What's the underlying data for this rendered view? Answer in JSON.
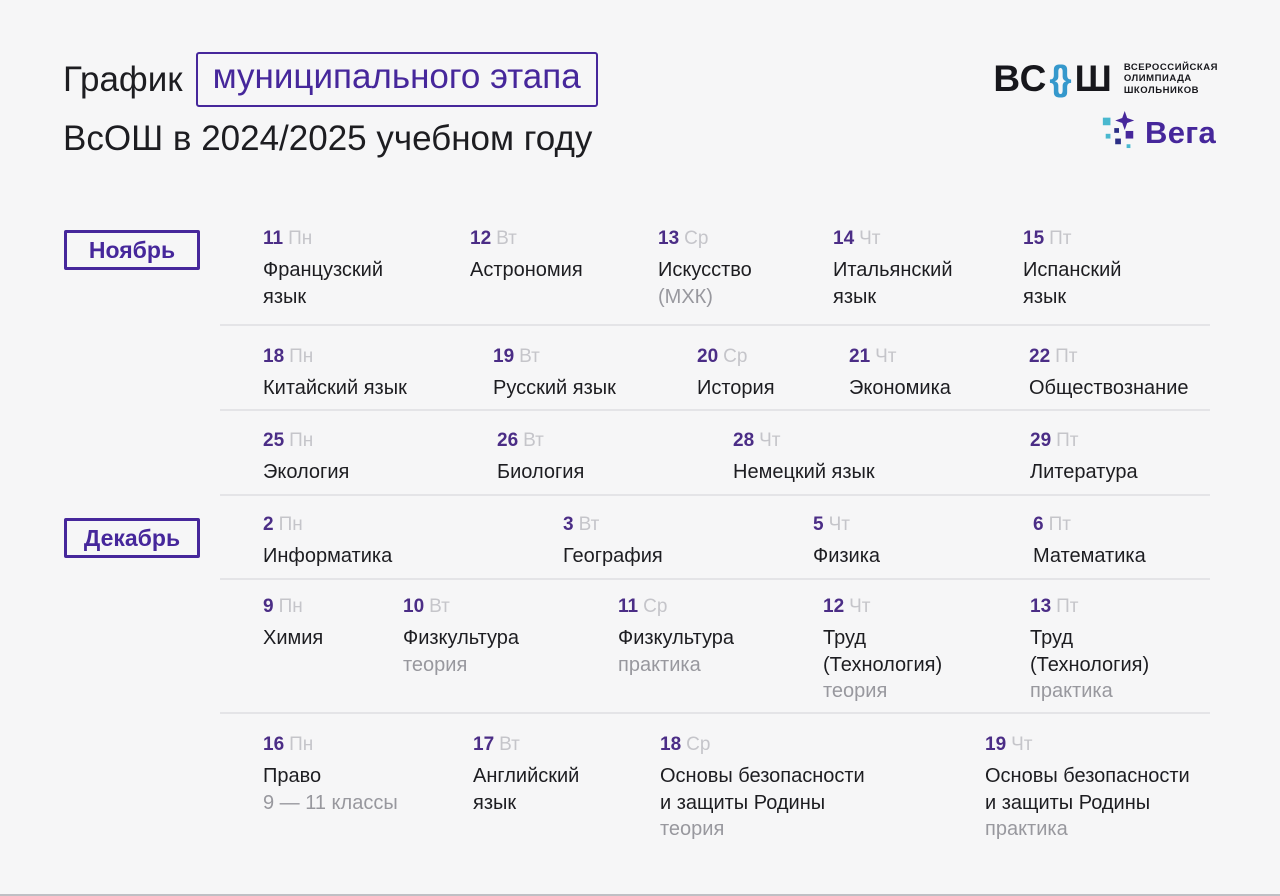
{
  "header": {
    "title_prefix": "График",
    "title_highlight": "муниципального этапа",
    "title_line2": "ВсОШ в 2024/2025 учебном году"
  },
  "logos": {
    "vsosh": {
      "wordmark_left": "ВС",
      "wordmark_o_left": "{",
      "wordmark_o_right": "}",
      "wordmark_right": "Ш",
      "caption_line1": "ВСЕРОССИЙСКАЯ",
      "caption_line2": "ОЛИМПИАДА",
      "caption_line3": "ШКОЛЬНИКОВ"
    },
    "vega": {
      "wordmark": "Вега"
    }
  },
  "colors": {
    "accent_purple": "#46279b",
    "date_purple": "#4b2d86",
    "vsosh_blue": "#3598cc",
    "vega_teal": "#49b8cf",
    "vega_navy": "#2b2f86",
    "text_dark": "#1d1d21",
    "sub_gray": "#98989e",
    "day_gray": "#c5c5ca",
    "background": "#f6f6f7"
  },
  "calendar": {
    "rows": [
      {
        "month": "Ноябрь",
        "cells": [
          {
            "date": "11",
            "day": "Пн",
            "lines": [
              "Французский",
              "язык"
            ]
          },
          {
            "date": "12",
            "day": "Вт",
            "lines": [
              "Астрономия"
            ]
          },
          {
            "date": "13",
            "day": "Ср",
            "lines": [
              "Искусство"
            ],
            "sub": "(МХК)"
          },
          {
            "date": "14",
            "day": "Чт",
            "lines": [
              "Итальянский",
              "язык"
            ]
          },
          {
            "date": "15",
            "day": "Пт",
            "lines": [
              "Испанский",
              "язык"
            ]
          }
        ]
      },
      {
        "cells": [
          {
            "date": "18",
            "day": "Пн",
            "lines": [
              "Китайский язык"
            ]
          },
          {
            "date": "19",
            "day": "Вт",
            "lines": [
              "Русский язык"
            ]
          },
          {
            "date": "20",
            "day": "Ср",
            "lines": [
              "История"
            ]
          },
          {
            "date": "21",
            "day": "Чт",
            "lines": [
              "Экономика"
            ]
          },
          {
            "date": "22",
            "day": "Пт",
            "lines": [
              "Обществознание"
            ]
          }
        ]
      },
      {
        "cells": [
          {
            "date": "25",
            "day": "Пн",
            "lines": [
              "Экология"
            ]
          },
          {
            "date": "26",
            "day": "Вт",
            "lines": [
              "Биология"
            ]
          },
          {
            "date": "28",
            "day": "Чт",
            "lines": [
              "Немецкий язык"
            ]
          },
          {
            "date": "29",
            "day": "Пт",
            "lines": [
              "Литература"
            ]
          }
        ]
      },
      {
        "month": "Декабрь",
        "cells": [
          {
            "date": "2",
            "day": "Пн",
            "lines": [
              "Информатика"
            ]
          },
          {
            "date": "3",
            "day": "Вт",
            "lines": [
              "География"
            ]
          },
          {
            "date": "5",
            "day": "Чт",
            "lines": [
              "Физика"
            ]
          },
          {
            "date": "6",
            "day": "Пт",
            "lines": [
              "Математика"
            ]
          }
        ]
      },
      {
        "cells": [
          {
            "date": "9",
            "day": "Пн",
            "lines": [
              "Химия"
            ]
          },
          {
            "date": "10",
            "day": "Вт",
            "lines": [
              "Физкультура"
            ],
            "sub": "теория"
          },
          {
            "date": "11",
            "day": "Ср",
            "lines": [
              "Физкультура"
            ],
            "sub": "практика"
          },
          {
            "date": "12",
            "day": "Чт",
            "lines": [
              "Труд",
              "(Технология)"
            ],
            "sub": "теория"
          },
          {
            "date": "13",
            "day": "Пт",
            "lines": [
              "Труд",
              "(Технология)"
            ],
            "sub": "практика"
          }
        ]
      },
      {
        "cells": [
          {
            "date": "16",
            "day": "Пн",
            "lines": [
              "Право"
            ],
            "sub": "9 — 11 классы"
          },
          {
            "date": "17",
            "day": "Вт",
            "lines": [
              "Английский",
              "язык"
            ]
          },
          {
            "date": "18",
            "day": "Ср",
            "lines": [
              "Основы безопасности",
              "и защиты Родины"
            ],
            "sub": "теория"
          },
          {
            "date": "19",
            "day": "Чт",
            "lines": [
              "Основы безопасности",
              "и защиты Родины"
            ],
            "sub": "практика"
          }
        ]
      }
    ]
  }
}
